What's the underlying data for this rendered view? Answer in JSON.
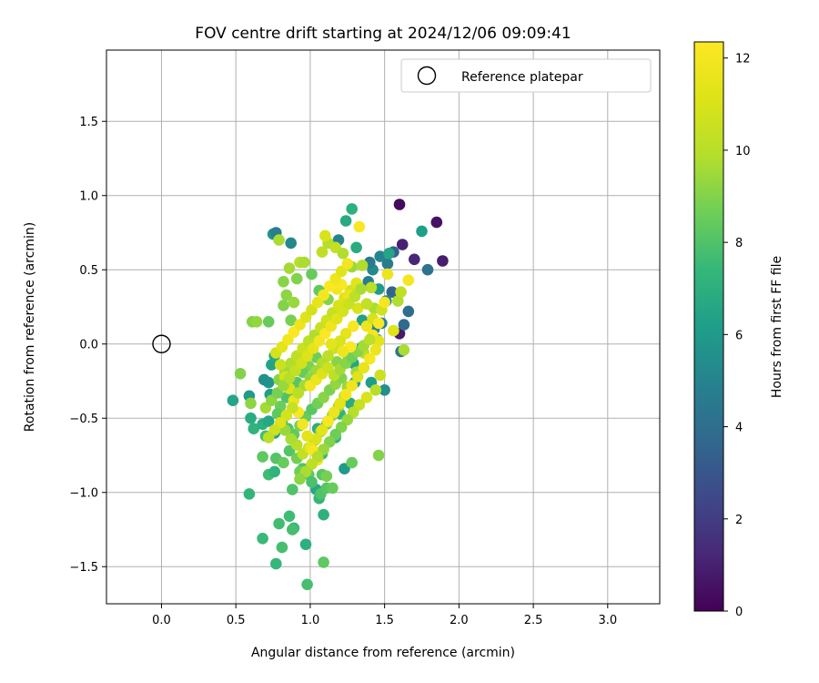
{
  "chart_data": {
    "type": "scatter",
    "title": "FOV centre drift starting at 2024/12/06 09:09:41",
    "xlabel": "Angular distance from reference (arcmin)",
    "ylabel": "Rotation from reference (arcmin)",
    "xlim": [
      -0.37,
      3.35
    ],
    "ylim": [
      -1.75,
      1.98
    ],
    "xticks": [
      0.0,
      0.5,
      1.0,
      1.5,
      2.0,
      2.5,
      3.0
    ],
    "xtick_labels": [
      "0.0",
      "0.5",
      "1.0",
      "1.5",
      "2.0",
      "2.5",
      "3.0"
    ],
    "yticks": [
      -1.5,
      -1.0,
      -0.5,
      0.0,
      0.5,
      1.0,
      1.5
    ],
    "ytick_labels": [
      "−1.5",
      "−1.0",
      "−0.5",
      "0.0",
      "0.5",
      "1.0",
      "1.5"
    ],
    "grid": true,
    "legend": {
      "position": "top-right",
      "entries": [
        {
          "label": "Reference platepar",
          "marker": "open-circle",
          "x": 0.0,
          "y": 0.0
        }
      ]
    },
    "colorbar": {
      "label": "Hours from first FF file",
      "min": 0,
      "max": 12.35,
      "ticks": [
        0,
        2,
        4,
        6,
        8,
        10,
        12
      ],
      "tick_labels": [
        "0",
        "2",
        "4",
        "6",
        "8",
        "10",
        "12"
      ],
      "colormap": "viridis"
    },
    "points": [
      [
        1.6,
        0.94,
        0.3
      ],
      [
        1.85,
        0.82,
        0.5
      ],
      [
        1.89,
        0.56,
        0.9
      ],
      [
        1.7,
        0.57,
        1.2
      ],
      [
        1.62,
        0.67,
        1.0
      ],
      [
        1.6,
        0.07,
        0.8
      ],
      [
        1.56,
        0.62,
        3.5
      ],
      [
        1.79,
        0.5,
        4.2
      ],
      [
        1.66,
        0.22,
        4.0
      ],
      [
        1.63,
        0.13,
        3.8
      ],
      [
        1.61,
        -0.05,
        4.3
      ],
      [
        1.55,
        0.35,
        3.6
      ],
      [
        1.52,
        0.54,
        4.6
      ],
      [
        1.47,
        0.59,
        5.0
      ],
      [
        1.42,
        0.5,
        5.3
      ],
      [
        1.39,
        0.42,
        4.8
      ],
      [
        1.51,
        0.29,
        5.2
      ],
      [
        1.48,
        0.14,
        5.0
      ],
      [
        1.43,
        0.1,
        4.9
      ],
      [
        1.45,
        0.03,
        5.1
      ],
      [
        1.4,
        0.55,
        4.5
      ],
      [
        1.75,
        0.76,
        6.2
      ],
      [
        1.53,
        0.61,
        6.5
      ],
      [
        1.24,
        0.83,
        6.7
      ],
      [
        1.19,
        0.7,
        5.0
      ],
      [
        0.75,
        0.74,
        5.8
      ],
      [
        0.77,
        0.75,
        4.7
      ],
      [
        0.87,
        0.68,
        5.2
      ],
      [
        1.28,
        0.91,
        7.0
      ],
      [
        1.31,
        0.65,
        6.8
      ],
      [
        1.46,
        0.37,
        6.0
      ],
      [
        1.5,
        -0.31,
        5.5
      ],
      [
        1.41,
        -0.26,
        6.2
      ],
      [
        1.23,
        -0.84,
        6.0
      ],
      [
        1.17,
        -0.63,
        7.1
      ],
      [
        1.3,
        -0.26,
        6.5
      ],
      [
        1.27,
        -0.4,
        6.8
      ],
      [
        1.29,
        -0.13,
        6.5
      ],
      [
        1.35,
        0.16,
        6.3
      ],
      [
        1.35,
        -0.02,
        5.7
      ],
      [
        1.2,
        -0.47,
        7.2
      ],
      [
        1.12,
        -0.52,
        7.0
      ],
      [
        1.05,
        -0.57,
        6.9
      ],
      [
        1.08,
        -0.74,
        7.5
      ],
      [
        1.04,
        -0.98,
        6.6
      ],
      [
        1.06,
        -1.04,
        7.3
      ],
      [
        1.09,
        -1.15,
        7.1
      ],
      [
        0.97,
        -1.35,
        7.0
      ],
      [
        0.77,
        -1.48,
        7.4
      ],
      [
        0.68,
        -1.31,
        7.5
      ],
      [
        0.81,
        -1.37,
        7.8
      ],
      [
        0.86,
        -1.16,
        7.6
      ],
      [
        0.89,
        -1.24,
        7.4
      ],
      [
        0.79,
        -1.21,
        7.7
      ],
      [
        0.88,
        -1.25,
        7.8
      ],
      [
        0.98,
        -1.62,
        7.8
      ],
      [
        1.09,
        -1.47,
        8.3
      ],
      [
        1.07,
        -1.01,
        8.0
      ],
      [
        1.11,
        -0.97,
        8.2
      ],
      [
        0.88,
        -0.98,
        8.0
      ],
      [
        0.72,
        -0.88,
        7.6
      ],
      [
        0.76,
        -0.86,
        7.2
      ],
      [
        0.59,
        -1.01,
        7.3
      ],
      [
        0.48,
        -0.38,
        6.5
      ],
      [
        0.59,
        -0.35,
        6.0
      ],
      [
        0.6,
        -0.5,
        6.8
      ],
      [
        0.62,
        -0.57,
        7.2
      ],
      [
        0.68,
        -0.54,
        7.0
      ],
      [
        0.72,
        -0.52,
        6.6
      ],
      [
        0.76,
        -0.6,
        6.4
      ],
      [
        0.73,
        -0.34,
        6.2
      ],
      [
        0.72,
        -0.26,
        5.8
      ],
      [
        0.69,
        -0.24,
        5.6
      ],
      [
        0.74,
        -0.14,
        6.4
      ],
      [
        0.76,
        -0.08,
        6.6
      ],
      [
        0.7,
        -0.62,
        7.8
      ],
      [
        0.68,
        -0.76,
        8.3
      ],
      [
        0.77,
        -0.77,
        8.1
      ],
      [
        0.82,
        -0.8,
        8.5
      ],
      [
        0.86,
        -0.72,
        8.1
      ],
      [
        0.91,
        -0.77,
        8.7
      ],
      [
        0.95,
        -0.84,
        8.0
      ],
      [
        0.93,
        -0.86,
        8.6
      ],
      [
        0.99,
        -0.88,
        8.3
      ],
      [
        1.01,
        -0.93,
        7.9
      ],
      [
        1.08,
        -0.88,
        8.2
      ],
      [
        1.15,
        -0.97,
        8.5
      ],
      [
        1.11,
        -0.89,
        8.8
      ],
      [
        1.28,
        -0.8,
        8.5
      ],
      [
        1.46,
        -0.75,
        9.0
      ],
      [
        0.6,
        -0.4,
        9.2
      ],
      [
        0.53,
        -0.2,
        9.0
      ],
      [
        0.61,
        0.15,
        9.0
      ],
      [
        0.64,
        0.15,
        9.3
      ],
      [
        0.72,
        0.15,
        8.5
      ],
      [
        0.82,
        0.26,
        9.0
      ],
      [
        0.84,
        0.33,
        9.2
      ],
      [
        0.87,
        0.16,
        8.8
      ],
      [
        0.89,
        0.28,
        9.4
      ],
      [
        0.91,
        0.44,
        9.0
      ],
      [
        0.86,
        0.51,
        9.6
      ],
      [
        0.82,
        0.42,
        9.1
      ],
      [
        0.79,
        0.7,
        9.7
      ],
      [
        0.93,
        0.55,
        9.9
      ],
      [
        0.96,
        0.55,
        9.7
      ],
      [
        1.01,
        0.47,
        8.5
      ],
      [
        1.06,
        0.36,
        8.4
      ],
      [
        1.12,
        0.3,
        9.0
      ],
      [
        1.08,
        0.62,
        10.2
      ],
      [
        1.12,
        0.68,
        10.0
      ],
      [
        1.17,
        0.65,
        10.3
      ],
      [
        1.22,
        0.61,
        9.8
      ],
      [
        1.28,
        0.52,
        9.5
      ],
      [
        1.35,
        0.53,
        9.8
      ],
      [
        1.41,
        0.38,
        10.1
      ],
      [
        1.43,
        0.24,
        9.7
      ],
      [
        1.59,
        0.29,
        9.8
      ],
      [
        1.61,
        0.35,
        10.2
      ],
      [
        1.63,
        -0.04,
        9.7
      ],
      [
        1.47,
        -0.21,
        10.6
      ],
      [
        1.36,
        -0.06,
        10.0
      ],
      [
        1.31,
        -0.19,
        9.5
      ],
      [
        1.25,
        -0.07,
        9.3
      ],
      [
        1.18,
        -0.12,
        9.1
      ],
      [
        1.1,
        -0.15,
        8.8
      ],
      [
        1.04,
        -0.09,
        8.6
      ],
      [
        0.99,
        -0.15,
        8.9
      ],
      [
        0.95,
        -0.19,
        8.5
      ],
      [
        0.91,
        -0.26,
        8.1
      ],
      [
        0.88,
        -0.31,
        8.4
      ],
      [
        0.84,
        -0.36,
        8.0
      ],
      [
        0.8,
        -0.42,
        8.6
      ],
      [
        0.78,
        -0.47,
        8.3
      ],
      [
        0.81,
        -0.52,
        7.8
      ],
      [
        0.85,
        -0.57,
        8.1
      ],
      [
        0.89,
        -0.61,
        8.4
      ],
      [
        0.93,
        -0.55,
        8.8
      ],
      [
        0.97,
        -0.49,
        8.5
      ],
      [
        1.01,
        -0.44,
        8.2
      ],
      [
        1.05,
        -0.4,
        8.7
      ],
      [
        1.09,
        -0.36,
        9.1
      ],
      [
        1.13,
        -0.31,
        8.9
      ],
      [
        1.17,
        -0.27,
        9.3
      ],
      [
        1.21,
        -0.23,
        9.0
      ],
      [
        1.25,
        -0.29,
        9.4
      ],
      [
        1.23,
        -0.35,
        9.8
      ],
      [
        1.19,
        -0.42,
        9.5
      ],
      [
        1.15,
        -0.48,
        9.2
      ],
      [
        1.11,
        -0.54,
        8.9
      ],
      [
        1.07,
        -0.59,
        9.3
      ],
      [
        1.03,
        -0.65,
        9.6
      ],
      [
        0.99,
        -0.7,
        9.9
      ],
      [
        0.95,
        -0.74,
        10.3
      ],
      [
        0.91,
        -0.68,
        10.0
      ],
      [
        0.87,
        -0.64,
        9.7
      ],
      [
        0.83,
        -0.58,
        9.4
      ],
      [
        0.79,
        -0.24,
        9.1
      ],
      [
        0.83,
        -0.19,
        9.5
      ],
      [
        0.87,
        -0.13,
        9.8
      ],
      [
        0.91,
        -0.08,
        10.2
      ],
      [
        0.95,
        -0.03,
        10.5
      ],
      [
        0.99,
        0.02,
        10.1
      ],
      [
        1.03,
        0.06,
        9.8
      ],
      [
        1.07,
        0.11,
        10.4
      ],
      [
        1.11,
        0.16,
        10.7
      ],
      [
        1.15,
        0.21,
        10.3
      ],
      [
        1.19,
        0.26,
        10.9
      ],
      [
        1.23,
        0.31,
        11.1
      ],
      [
        1.27,
        0.36,
        10.8
      ],
      [
        1.31,
        0.41,
        11.3
      ],
      [
        1.18,
        0.37,
        11.9
      ],
      [
        1.21,
        0.4,
        12.2
      ],
      [
        1.26,
        0.33,
        11.6
      ],
      [
        1.32,
        0.24,
        11.0
      ],
      [
        1.38,
        0.12,
        11.8
      ],
      [
        1.42,
        0.06,
        12.0
      ],
      [
        1.46,
        0.02,
        11.4
      ],
      [
        1.44,
        -0.04,
        11.7
      ],
      [
        1.4,
        -0.1,
        12.1
      ],
      [
        1.36,
        -0.16,
        11.5
      ],
      [
        1.32,
        -0.22,
        11.2
      ],
      [
        1.28,
        -0.28,
        11.8
      ],
      [
        1.24,
        -0.34,
        12.0
      ],
      [
        1.2,
        -0.4,
        11.4
      ],
      [
        1.16,
        -0.46,
        11.7
      ],
      [
        1.12,
        -0.52,
        12.2
      ],
      [
        1.08,
        -0.58,
        11.3
      ],
      [
        1.04,
        -0.64,
        11.0
      ],
      [
        1.0,
        -0.7,
        11.6
      ],
      [
        1.02,
        -0.72,
        12.1
      ],
      [
        1.05,
        -0.78,
        11.8
      ],
      [
        0.98,
        -0.62,
        11.4
      ],
      [
        0.95,
        -0.54,
        11.9
      ],
      [
        0.92,
        -0.46,
        12.2
      ],
      [
        0.89,
        -0.38,
        11.6
      ],
      [
        0.86,
        -0.3,
        11.1
      ],
      [
        0.83,
        -0.22,
        10.9
      ],
      [
        0.8,
        -0.14,
        10.5
      ],
      [
        0.77,
        -0.06,
        10.8
      ],
      [
        0.81,
        -0.02,
        11.4
      ],
      [
        0.85,
        0.03,
        11.9
      ],
      [
        0.89,
        0.08,
        12.2
      ],
      [
        0.93,
        0.13,
        11.7
      ],
      [
        0.97,
        0.18,
        11.2
      ],
      [
        1.01,
        0.23,
        10.8
      ],
      [
        1.05,
        0.28,
        11.5
      ],
      [
        1.09,
        0.33,
        12.0
      ],
      [
        1.13,
        0.39,
        12.3
      ],
      [
        1.17,
        0.44,
        11.8
      ],
      [
        1.21,
        0.49,
        11.3
      ],
      [
        1.25,
        0.54,
        11.9
      ],
      [
        1.33,
        0.79,
        12.2
      ],
      [
        1.1,
        0.73,
        11.0
      ],
      [
        1.66,
        0.43,
        12.0
      ],
      [
        1.52,
        0.47,
        11.7
      ],
      [
        1.29,
        0.12,
        12.1
      ],
      [
        1.24,
        0.07,
        11.5
      ],
      [
        1.2,
        0.02,
        11.0
      ],
      [
        1.16,
        -0.03,
        10.6
      ],
      [
        1.12,
        -0.08,
        10.2
      ],
      [
        1.08,
        -0.13,
        9.8
      ],
      [
        1.04,
        -0.18,
        9.5
      ],
      [
        1.0,
        -0.23,
        9.2
      ],
      [
        0.96,
        -0.28,
        9.6
      ],
      [
        0.92,
        -0.33,
        10.0
      ],
      [
        0.88,
        -0.43,
        10.4
      ],
      [
        0.84,
        -0.48,
        10.8
      ],
      [
        0.8,
        -0.53,
        11.2
      ],
      [
        0.76,
        -0.58,
        10.6
      ],
      [
        0.72,
        -0.63,
        10.1
      ],
      [
        0.7,
        -0.43,
        9.6
      ],
      [
        0.74,
        -0.38,
        9.2
      ],
      [
        0.78,
        -0.33,
        8.8
      ],
      [
        0.82,
        -0.28,
        9.4
      ],
      [
        0.86,
        -0.23,
        9.9
      ],
      [
        0.9,
        -0.18,
        10.3
      ],
      [
        0.94,
        -0.13,
        10.7
      ],
      [
        0.98,
        -0.08,
        11.1
      ],
      [
        1.02,
        -0.03,
        11.5
      ],
      [
        1.06,
        0.02,
        11.9
      ],
      [
        1.1,
        0.07,
        12.3
      ],
      [
        1.14,
        0.12,
        11.8
      ],
      [
        1.18,
        0.17,
        11.3
      ],
      [
        1.22,
        0.22,
        10.9
      ],
      [
        1.26,
        0.27,
        10.5
      ],
      [
        1.3,
        0.32,
        10.1
      ],
      [
        1.34,
        0.37,
        9.7
      ],
      [
        1.38,
        0.27,
        10.3
      ],
      [
        1.42,
        0.17,
        10.9
      ],
      [
        1.44,
        -0.31,
        10.0
      ],
      [
        1.38,
        -0.36,
        11.0
      ],
      [
        1.33,
        -0.41,
        10.4
      ],
      [
        1.29,
        -0.46,
        9.9
      ],
      [
        1.25,
        -0.51,
        9.4
      ],
      [
        1.21,
        -0.56,
        9.0
      ],
      [
        1.17,
        -0.61,
        8.6
      ],
      [
        1.13,
        -0.66,
        9.0
      ],
      [
        1.09,
        -0.71,
        9.4
      ],
      [
        1.05,
        -0.76,
        9.8
      ],
      [
        1.01,
        -0.81,
        10.2
      ],
      [
        0.97,
        -0.86,
        9.7
      ],
      [
        0.93,
        -0.91,
        9.2
      ],
      [
        1.0,
        -0.28,
        12.0
      ],
      [
        1.04,
        -0.24,
        11.6
      ],
      [
        1.08,
        -0.2,
        11.1
      ],
      [
        1.12,
        -0.16,
        10.6
      ],
      [
        1.16,
        -0.21,
        10.1
      ],
      [
        1.2,
        -0.17,
        9.6
      ],
      [
        1.24,
        -0.13,
        9.1
      ],
      [
        1.28,
        -0.09,
        8.7
      ],
      [
        1.32,
        -0.05,
        9.1
      ],
      [
        1.36,
        -0.01,
        9.6
      ],
      [
        1.4,
        0.03,
        10.1
      ],
      [
        1.48,
        0.23,
        10.7
      ],
      [
        1.56,
        0.09,
        11.2
      ],
      [
        1.5,
        0.28,
        12.0
      ],
      [
        1.46,
        0.14,
        12.2
      ],
      [
        1.27,
        -0.02,
        12.3
      ],
      [
        1.22,
        -0.05,
        11.8
      ],
      [
        1.14,
        0.0,
        11.4
      ]
    ]
  }
}
